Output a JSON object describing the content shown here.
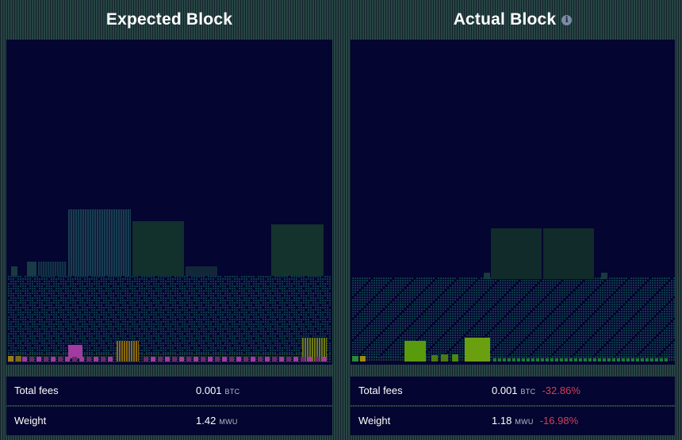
{
  "expected": {
    "title": "Expected Block",
    "stats": [
      {
        "label": "Total fees",
        "value": "0.001",
        "unit": "BTC"
      },
      {
        "label": "Weight",
        "value": "1.42",
        "unit": "MWU"
      }
    ]
  },
  "actual": {
    "title": "Actual Block",
    "info_icon": "info-icon",
    "stats": [
      {
        "label": "Total fees",
        "value": "0.001",
        "unit": "BTC",
        "delta": "-32.86%"
      },
      {
        "label": "Weight",
        "value": "1.18",
        "unit": "MWU",
        "delta": "-16.98%"
      }
    ]
  },
  "colors": {
    "background": "#040530",
    "tx_low": "#0d3a49",
    "tx_mid": "#12302c",
    "tx_green": "#5a9a0d",
    "tx_magenta": "#a23ba0",
    "tx_orange": "#8a6a10",
    "negative_delta": "#cf4156"
  }
}
